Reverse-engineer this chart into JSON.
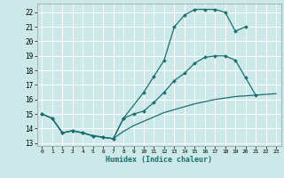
{
  "xlabel": "Humidex (Indice chaleur)",
  "xlim": [
    -0.5,
    23.5
  ],
  "ylim": [
    12.8,
    22.6
  ],
  "xticks": [
    0,
    1,
    2,
    3,
    4,
    5,
    6,
    7,
    8,
    9,
    10,
    11,
    12,
    13,
    14,
    15,
    16,
    17,
    18,
    19,
    20,
    21,
    22,
    23
  ],
  "yticks": [
    13,
    14,
    15,
    16,
    17,
    18,
    19,
    20,
    21,
    22
  ],
  "bg_color": "#cce8e8",
  "grid_color": "#ffffff",
  "line_color": "#1a7070",
  "curve1_x": [
    0,
    1,
    2,
    3,
    4,
    5,
    6,
    7,
    8,
    10,
    11,
    12,
    13,
    14,
    15,
    16,
    17,
    18,
    19,
    20,
    21,
    22
  ],
  "curve1_y": [
    15.0,
    14.7,
    13.7,
    13.85,
    13.7,
    13.5,
    13.4,
    13.3,
    14.7,
    16.5,
    17.6,
    18.7,
    21.0,
    21.8,
    22.2,
    22.2,
    22.2,
    22.0,
    20.7,
    21.0,
    null,
    null
  ],
  "curve2_x": [
    0,
    1,
    2,
    3,
    4,
    5,
    6,
    7,
    8,
    9,
    10,
    11,
    12,
    13,
    14,
    15,
    16,
    17,
    18,
    19,
    20,
    21,
    22
  ],
  "curve2_y": [
    15.0,
    14.7,
    13.7,
    13.85,
    13.7,
    13.5,
    13.4,
    13.3,
    14.7,
    15.0,
    15.2,
    15.8,
    16.5,
    17.3,
    17.8,
    18.5,
    18.9,
    19.0,
    19.0,
    18.7,
    17.5,
    16.3,
    null
  ],
  "curve3_x": [
    0,
    1,
    2,
    3,
    4,
    5,
    6,
    7,
    8,
    9,
    10,
    11,
    12,
    13,
    14,
    15,
    16,
    17,
    18,
    19,
    20,
    21,
    22,
    23
  ],
  "curve3_y": [
    15.0,
    14.7,
    13.7,
    13.85,
    13.7,
    13.5,
    13.4,
    13.3,
    13.8,
    14.2,
    14.5,
    14.8,
    15.1,
    15.3,
    15.5,
    15.7,
    15.85,
    16.0,
    16.1,
    16.2,
    16.25,
    16.3,
    16.35,
    16.4
  ]
}
